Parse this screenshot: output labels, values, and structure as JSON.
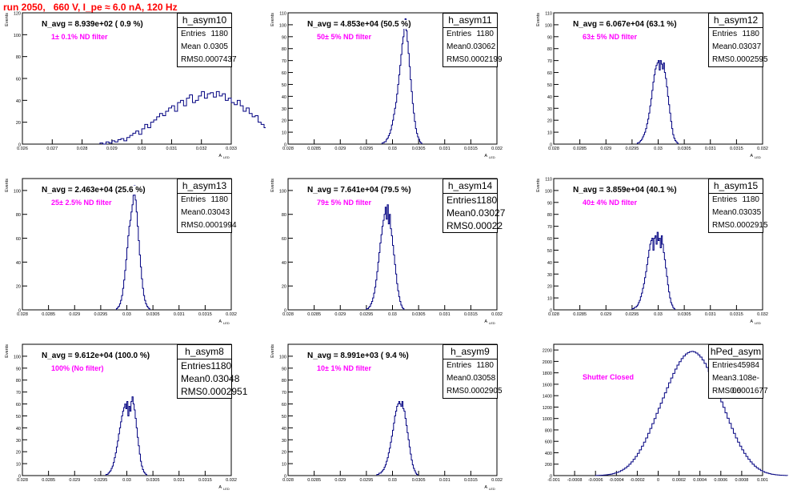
{
  "page_title": "run 2050,   660 V, I_pe ≈ 6.0 nA, 120 Hz",
  "colors": {
    "title": "#ff0000",
    "annotation": "#ff00ff",
    "histogram": "#000080"
  },
  "chart_data": [
    {
      "type": "histogram",
      "name": "h_asym10",
      "navg": "N_avg = 8.939e+02 ( 0.9 %)",
      "filter": "1± 0.1% ND filter",
      "stats": {
        "entries": "1180",
        "mean": "0.0305",
        "rms": "0.0007437"
      },
      "xlabel": "A",
      "xlabel_sub": "LED",
      "ylabel": "Events",
      "xlim": [
        0.026,
        0.033
      ],
      "xticks": [
        "0.026",
        "0.027",
        "0.028",
        "0.029",
        "0.03",
        "0.031",
        "0.032",
        "0.033"
      ],
      "ylim": [
        0,
        120
      ],
      "yticks": [
        "0",
        "20",
        "40",
        "60",
        "80",
        "100",
        "120"
      ],
      "bins": {
        "start": 0.0286,
        "width": 0.0001,
        "counts": [
          1,
          0,
          2,
          1,
          3,
          2,
          4,
          5,
          3,
          6,
          8,
          10,
          12,
          9,
          14,
          18,
          15,
          20,
          22,
          25,
          28,
          26,
          30,
          33,
          35,
          30,
          38,
          40,
          35,
          42,
          45,
          38,
          40,
          44,
          48,
          42,
          46,
          47,
          43,
          48,
          44,
          46,
          40,
          42,
          38,
          36,
          40,
          35,
          30,
          33,
          28,
          25,
          26,
          20,
          18,
          15,
          12,
          14,
          10,
          8,
          6,
          5,
          4,
          3,
          2,
          1
        ]
      }
    },
    {
      "type": "histogram",
      "name": "h_asym11",
      "navg": "N_avg = 4.853e+04 (50.5 %)",
      "filter": "50± 5% ND filter",
      "stats": {
        "entries": "1180",
        "mean": "0.03062",
        "rms": "0.0002199"
      },
      "xlabel": "A",
      "xlabel_sub": "LED",
      "ylabel": "Events",
      "xlim": [
        0.028,
        0.032
      ],
      "xticks": [
        "0.028",
        "0.0285",
        "0.029",
        "0.0295",
        "0.03",
        "0.0305",
        "0.031",
        "0.0315",
        "0.032"
      ],
      "ylim": [
        0,
        110
      ],
      "yticks": [
        "0",
        "10",
        "20",
        "30",
        "40",
        "50",
        "60",
        "70",
        "80",
        "90",
        "100",
        "110"
      ],
      "bins": {
        "start": 0.0298,
        "width": 2e-05,
        "counts": [
          1,
          1,
          2,
          2,
          4,
          5,
          7,
          9,
          12,
          16,
          20,
          25,
          30,
          35,
          42,
          50,
          58,
          66,
          75,
          84,
          90,
          97,
          105,
          95,
          86,
          76,
          65,
          54,
          44,
          34,
          26,
          19,
          13,
          9,
          6,
          4,
          2,
          1
        ]
      }
    },
    {
      "type": "histogram",
      "name": "h_asym12",
      "navg": "N_avg = 6.067e+04 (63.1 %)",
      "filter": "63± 5% ND filter",
      "stats": {
        "entries": "1180",
        "mean": "0.03037",
        "rms": "0.0002595"
      },
      "xlabel": "A",
      "xlabel_sub": "LED",
      "ylabel": "Events",
      "xlim": [
        0.028,
        0.032
      ],
      "xticks": [
        "0.028",
        "0.0285",
        "0.029",
        "0.0295",
        "0.03",
        "0.0305",
        "0.031",
        "0.0315",
        "0.032"
      ],
      "ylim": [
        0,
        110
      ],
      "yticks": [
        "0",
        "10",
        "20",
        "30",
        "40",
        "50",
        "60",
        "70",
        "80",
        "90",
        "100",
        "110"
      ],
      "bins": {
        "start": 0.0296,
        "width": 2e-05,
        "counts": [
          1,
          1,
          2,
          3,
          4,
          6,
          8,
          10,
          13,
          17,
          21,
          26,
          32,
          38,
          45,
          52,
          58,
          63,
          66,
          68,
          70,
          62,
          70,
          67,
          63,
          68,
          60,
          55,
          48,
          40,
          33,
          26,
          19,
          13,
          8,
          5,
          3,
          2,
          1
        ]
      }
    },
    {
      "type": "histogram",
      "name": "h_asym13",
      "navg": "N_avg = 2.463e+04 (25.6 %)",
      "filter": "25± 2.5% ND filter",
      "stats": {
        "entries": "1180",
        "mean": "0.03043",
        "rms": "0.0001994"
      },
      "xlabel": "A",
      "xlabel_sub": "LED",
      "ylabel": "Events",
      "xlim": [
        0.028,
        0.032
      ],
      "xticks": [
        "0.028",
        "0.0285",
        "0.029",
        "0.0295",
        "0.03",
        "0.0305",
        "0.031",
        "0.0315",
        "0.032"
      ],
      "ylim": [
        0,
        110
      ],
      "yticks": [
        "0",
        "20",
        "40",
        "60",
        "80",
        "100"
      ],
      "bins": {
        "start": 0.0298,
        "width": 2e-05,
        "counts": [
          1,
          2,
          3,
          5,
          8,
          12,
          18,
          25,
          33,
          42,
          52,
          62,
          70,
          75,
          82,
          88,
          96,
          104,
          92,
          82,
          70,
          58,
          46,
          36,
          26,
          18,
          12,
          8,
          5,
          3,
          2,
          1
        ]
      }
    },
    {
      "type": "histogram",
      "name": "h_asym14",
      "navg": "N_avg = 7.641e+04 (79.5 %)",
      "filter": "79± 5% ND filter",
      "stats": {
        "entries": "1180",
        "mean": "0.03027",
        "rms": "0.00022"
      },
      "statbox_big": true,
      "xlabel": "A",
      "xlabel_sub": "LED",
      "ylabel": "Events",
      "xlim": [
        0.028,
        0.032
      ],
      "xticks": [
        "0.028",
        "0.0285",
        "0.029",
        "0.0295",
        "0.03",
        "0.0305",
        "0.031",
        "0.0315",
        "0.032"
      ],
      "ylim": [
        0,
        110
      ],
      "yticks": [
        "0",
        "20",
        "40",
        "60",
        "80",
        "100"
      ],
      "bins": {
        "start": 0.0295,
        "width": 2e-05,
        "counts": [
          1,
          1,
          2,
          3,
          5,
          7,
          10,
          14,
          19,
          25,
          32,
          40,
          48,
          56,
          63,
          70,
          75,
          80,
          86,
          76,
          88,
          72,
          80,
          68,
          62,
          54,
          46,
          38,
          30,
          22,
          16,
          11,
          7,
          4,
          2,
          1
        ]
      }
    },
    {
      "type": "histogram",
      "name": "h_asym15",
      "navg": "N_avg = 3.859e+04 (40.1 %)",
      "filter": "40± 4% ND filter",
      "stats": {
        "entries": "1180",
        "mean": "0.03035",
        "rms": "0.0002915"
      },
      "xlabel": "A",
      "xlabel_sub": "LED",
      "ylabel": "Events",
      "xlim": [
        0.028,
        0.032
      ],
      "xticks": [
        "0.028",
        "0.0285",
        "0.029",
        "0.0295",
        "0.03",
        "0.0305",
        "0.031",
        "0.0315",
        "0.032"
      ],
      "ylim": [
        0,
        110
      ],
      "yticks": [
        "0",
        "10",
        "20",
        "30",
        "40",
        "50",
        "60",
        "70",
        "80",
        "90",
        "100",
        "110"
      ],
      "bins": {
        "start": 0.0295,
        "width": 2e-05,
        "counts": [
          1,
          1,
          2,
          2,
          3,
          4,
          6,
          8,
          11,
          14,
          18,
          22,
          27,
          32,
          38,
          44,
          50,
          55,
          58,
          60,
          50,
          60,
          62,
          55,
          65,
          58,
          60,
          52,
          62,
          55,
          48,
          42,
          35,
          28,
          21,
          15,
          10,
          6,
          4,
          2,
          1
        ]
      }
    },
    {
      "type": "histogram",
      "name": "h_asym8",
      "navg": "N_avg = 9.612e+04 (100.0 %)",
      "filter": "100% (No filter)",
      "stats": {
        "entries": "1180",
        "mean": "0.03048",
        "rms": "0.0002951"
      },
      "statbox_big": true,
      "xlabel": "A",
      "xlabel_sub": "LED",
      "ylabel": "Events",
      "xlim": [
        0.028,
        0.032
      ],
      "xticks": [
        "0.028",
        "0.0285",
        "0.029",
        "0.0295",
        "0.03",
        "0.0305",
        "0.031",
        "0.0315",
        "0.032"
      ],
      "ylim": [
        0,
        110
      ],
      "yticks": [
        "0",
        "10",
        "20",
        "30",
        "40",
        "50",
        "60",
        "70",
        "80",
        "90",
        "100"
      ],
      "bins": {
        "start": 0.0296,
        "width": 2e-05,
        "counts": [
          1,
          1,
          2,
          3,
          4,
          6,
          8,
          11,
          15,
          19,
          24,
          29,
          35,
          40,
          45,
          50,
          54,
          57,
          60,
          56,
          62,
          50,
          58,
          54,
          62,
          66,
          60,
          55,
          48,
          40,
          32,
          25,
          18,
          12,
          8,
          5,
          3,
          2,
          1
        ]
      }
    },
    {
      "type": "histogram",
      "name": "h_asym9",
      "navg": "N_avg = 8.991e+03 ( 9.4 %)",
      "filter": "10± 1% ND filter",
      "stats": {
        "entries": "1180",
        "mean": "0.03058",
        "rms": "0.0002905"
      },
      "xlabel": "A",
      "xlabel_sub": "LED",
      "ylabel": "Events",
      "xlim": [
        0.028,
        0.032
      ],
      "xticks": [
        "0.028",
        "0.0285",
        "0.029",
        "0.0295",
        "0.03",
        "0.0305",
        "0.031",
        "0.0315",
        "0.032"
      ],
      "ylim": [
        0,
        110
      ],
      "yticks": [
        "0",
        "10",
        "20",
        "30",
        "40",
        "50",
        "60",
        "70",
        "80",
        "90",
        "100"
      ],
      "bins": {
        "start": 0.0297,
        "width": 2e-05,
        "counts": [
          1,
          1,
          2,
          2,
          3,
          4,
          5,
          7,
          9,
          12,
          15,
          19,
          23,
          28,
          33,
          38,
          44,
          50,
          54,
          58,
          60,
          62,
          60,
          58,
          62,
          56,
          54,
          48,
          42,
          36,
          30,
          24,
          18,
          13,
          9,
          6,
          4,
          2,
          1
        ]
      }
    },
    {
      "type": "histogram",
      "name": "hPed_asym",
      "navg": "",
      "filter": "Shutter Closed",
      "stats": {
        "entries": "45984",
        "mean": "3.108e-06",
        "rms": "0.0001677"
      },
      "xlabel": "",
      "xlabel_sub": "",
      "ylabel": "",
      "xlim": [
        -0.001,
        0.001
      ],
      "xticks": [
        "-0.001",
        "-0.0008",
        "-0.0006",
        "-0.0004",
        "-0.0002",
        "0",
        "0.0002",
        "0.0004",
        "0.0006",
        "0.0008",
        "0.001"
      ],
      "ylim": [
        0,
        2300
      ],
      "yticks": [
        "0",
        "200",
        "400",
        "600",
        "800",
        "1000",
        "1200",
        "1400",
        "1600",
        "1800",
        "2000",
        "2200"
      ],
      "bins": {
        "start": -0.0006,
        "width": 2e-05,
        "counts": [
          2,
          3,
          5,
          7,
          10,
          14,
          19,
          25,
          33,
          43,
          55,
          70,
          88,
          110,
          135,
          165,
          200,
          240,
          285,
          335,
          390,
          450,
          515,
          585,
          660,
          740,
          825,
          910,
          1000,
          1090,
          1180,
          1270,
          1360,
          1450,
          1540,
          1625,
          1710,
          1790,
          1865,
          1935,
          1995,
          2050,
          2095,
          2130,
          2155,
          2170,
          2175,
          2165,
          2145,
          2115,
          2075,
          2025,
          1965,
          1895,
          1820,
          1740,
          1655,
          1565,
          1475,
          1385,
          1290,
          1195,
          1100,
          1005,
          915,
          825,
          740,
          660,
          585,
          515,
          450,
          390,
          335,
          285,
          240,
          200,
          165,
          135,
          110,
          88,
          70,
          55,
          43,
          33,
          25,
          19,
          14,
          10,
          7,
          5,
          3,
          2
        ]
      }
    }
  ]
}
